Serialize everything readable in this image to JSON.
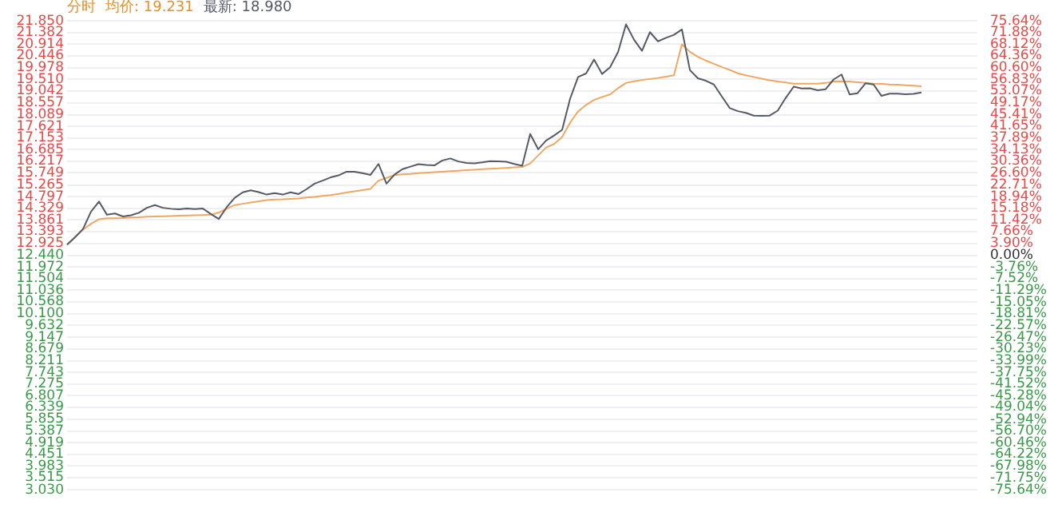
{
  "chart_data": {
    "type": "line",
    "title": "分时",
    "annotations": [
      "均价: 19.231",
      "最新: 18.980"
    ],
    "categories": [
      null,
      null,
      null,
      null,
      null,
      null,
      null,
      null,
      null,
      null,
      null,
      null,
      null,
      null,
      null,
      null,
      null,
      null,
      null,
      null,
      null,
      null,
      null,
      null,
      null,
      null,
      null,
      null,
      null,
      null,
      null,
      null,
      null,
      null,
      null,
      null,
      null,
      null,
      null,
      null,
      null,
      null,
      null,
      null,
      null,
      null,
      null,
      null,
      null,
      null,
      null,
      null,
      null,
      null,
      null,
      null,
      null,
      null,
      null,
      null,
      null,
      null,
      null,
      null,
      null,
      null,
      null,
      null,
      null,
      null,
      null,
      null,
      null,
      null,
      null,
      null,
      null,
      null,
      null,
      null,
      null,
      null,
      null,
      null,
      null,
      null,
      null,
      null,
      null,
      null,
      null,
      null,
      null,
      null,
      null,
      null,
      null,
      null,
      null,
      null,
      null,
      null,
      null,
      null,
      null,
      null,
      null,
      null,
      null,
      null,
      null,
      null,
      null,
      null,
      null
    ],
    "series": [
      {
        "color": "#555a66",
        "values": [
          12.87,
          13.17,
          13.5,
          14.2,
          14.6,
          14.07,
          14.12,
          14.0,
          14.05,
          14.15,
          14.35,
          14.46,
          14.35,
          14.31,
          14.29,
          14.32,
          14.3,
          14.32,
          14.1,
          13.9,
          14.38,
          14.75,
          14.97,
          15.05,
          14.98,
          14.88,
          14.94,
          14.88,
          14.97,
          14.9,
          15.1,
          15.32,
          15.44,
          15.57,
          15.65,
          15.8,
          15.8,
          15.74,
          15.67,
          16.11,
          15.32,
          15.68,
          15.9,
          16.0,
          16.1,
          16.07,
          16.05,
          16.25,
          16.33,
          16.21,
          16.15,
          16.13,
          16.17,
          16.22,
          16.21,
          16.2,
          16.11,
          16.04,
          17.31,
          16.7,
          17.05,
          17.25,
          17.48,
          18.73,
          19.6,
          19.74,
          20.3,
          19.72,
          19.99,
          20.6,
          21.71,
          21.1,
          20.65,
          21.4,
          21.03,
          21.17,
          21.29,
          21.51,
          19.88,
          19.55,
          19.45,
          19.3,
          18.82,
          18.35,
          18.23,
          18.16,
          18.05,
          18.04,
          18.05,
          18.25,
          18.76,
          19.21,
          19.14,
          19.15,
          19.07,
          19.11,
          19.5,
          19.7,
          18.9,
          18.95,
          19.35,
          19.3,
          18.84,
          18.93,
          18.93,
          18.91,
          18.92,
          18.98,
          null,
          null,
          null,
          null,
          null,
          null,
          null
        ]
      },
      {
        "color": "#f0a860",
        "values": [
          12.87,
          13.18,
          13.47,
          13.71,
          13.89,
          13.93,
          13.93,
          13.94,
          13.96,
          13.97,
          13.99,
          14.0,
          14.01,
          14.02,
          14.03,
          14.04,
          14.05,
          14.06,
          14.07,
          14.16,
          14.32,
          14.46,
          14.51,
          14.56,
          14.61,
          14.66,
          14.68,
          14.69,
          14.71,
          14.72,
          14.76,
          14.79,
          14.83,
          14.86,
          14.91,
          14.96,
          15.01,
          15.06,
          15.11,
          15.44,
          15.55,
          15.66,
          15.69,
          15.71,
          15.74,
          15.76,
          15.78,
          15.8,
          15.82,
          15.84,
          15.86,
          15.88,
          15.9,
          15.92,
          15.93,
          15.95,
          15.97,
          15.99,
          16.13,
          16.45,
          16.77,
          16.91,
          17.19,
          17.77,
          18.22,
          18.48,
          18.68,
          18.8,
          18.9,
          19.15,
          19.36,
          19.43,
          19.48,
          19.52,
          19.56,
          19.61,
          19.67,
          20.91,
          20.61,
          20.41,
          20.26,
          20.13,
          20.0,
          19.88,
          19.75,
          19.67,
          19.6,
          19.53,
          19.47,
          19.42,
          19.38,
          19.33,
          19.33,
          19.33,
          19.33,
          19.36,
          19.42,
          19.43,
          19.42,
          19.39,
          19.36,
          19.33,
          19.32,
          19.3,
          19.29,
          19.27,
          19.25,
          19.231,
          null,
          null,
          null,
          null,
          null,
          null,
          null
        ]
      }
    ],
    "ylim": [
      3.03,
      21.85
    ],
    "yticks": [
      {
        "value": 21.85,
        "label": "21.850"
      },
      {
        "value": 21.382,
        "label": "21.382"
      },
      {
        "value": 20.914,
        "label": "20.914"
      },
      {
        "value": 20.446,
        "label": "20.446"
      },
      {
        "value": 19.978,
        "label": "19.978"
      },
      {
        "value": 19.51,
        "label": "19.510"
      },
      {
        "value": 19.042,
        "label": "19.042"
      },
      {
        "value": 18.557,
        "label": "18.557"
      },
      {
        "value": 18.089,
        "label": "18.089"
      },
      {
        "value": 17.621,
        "label": "17.621"
      },
      {
        "value": 17.153,
        "label": "17.153"
      },
      {
        "value": 16.685,
        "label": "16.685"
      },
      {
        "value": 16.217,
        "label": "16.217"
      },
      {
        "value": 15.749,
        "label": "15.749"
      },
      {
        "value": 15.265,
        "label": "15.265"
      },
      {
        "value": 14.797,
        "label": "14.797"
      },
      {
        "value": 14.329,
        "label": "14.329"
      },
      {
        "value": 13.861,
        "label": "13.861"
      },
      {
        "value": 13.393,
        "label": "13.393"
      },
      {
        "value": 12.925,
        "label": "12.925"
      },
      {
        "value": 12.44,
        "label": "12.440"
      },
      {
        "value": 11.972,
        "label": "11.972"
      },
      {
        "value": 11.504,
        "label": "11.504"
      },
      {
        "value": 11.036,
        "label": "11.036"
      },
      {
        "value": 10.568,
        "label": "10.568"
      },
      {
        "value": 10.1,
        "label": "10.100"
      },
      {
        "value": 9.632,
        "label": "9.632"
      },
      {
        "value": 9.147,
        "label": "9.147"
      },
      {
        "value": 8.679,
        "label": "8.679"
      },
      {
        "value": 8.211,
        "label": "8.211"
      },
      {
        "value": 7.743,
        "label": "7.743"
      },
      {
        "value": 7.275,
        "label": "7.275"
      },
      {
        "value": 6.807,
        "label": "6.807"
      },
      {
        "value": 6.339,
        "label": "6.339"
      },
      {
        "value": 5.855,
        "label": "5.855"
      },
      {
        "value": 5.387,
        "label": "5.387"
      },
      {
        "value": 4.919,
        "label": "4.919"
      },
      {
        "value": 4.451,
        "label": "4.451"
      },
      {
        "value": 3.983,
        "label": "3.983"
      },
      {
        "value": 3.515,
        "label": "3.515"
      },
      {
        "value": 3.03,
        "label": "3.030"
      }
    ],
    "y2lim": [
      -75.64,
      75.64
    ],
    "y2ticks": [
      {
        "value": 75.64,
        "label": "75.64%"
      },
      {
        "value": 71.88,
        "label": "71.88%"
      },
      {
        "value": 68.12,
        "label": "68.12%"
      },
      {
        "value": 64.36,
        "label": "64.36%"
      },
      {
        "value": 60.6,
        "label": "60.60%"
      },
      {
        "value": 56.83,
        "label": "56.83%"
      },
      {
        "value": 53.07,
        "label": "53.07%"
      },
      {
        "value": 49.17,
        "label": "49.17%"
      },
      {
        "value": 45.41,
        "label": "45.41%"
      },
      {
        "value": 41.65,
        "label": "41.65%"
      },
      {
        "value": 37.89,
        "label": "37.89%"
      },
      {
        "value": 34.13,
        "label": "34.13%"
      },
      {
        "value": 30.36,
        "label": "30.36%"
      },
      {
        "value": 26.6,
        "label": "26.60%"
      },
      {
        "value": 22.71,
        "label": "22.71%"
      },
      {
        "value": 18.94,
        "label": "18.94%"
      },
      {
        "value": 15.18,
        "label": "15.18%"
      },
      {
        "value": 11.42,
        "label": "11.42%"
      },
      {
        "value": 7.66,
        "label": "7.66%"
      },
      {
        "value": 3.9,
        "label": "3.90%"
      },
      {
        "value": 0,
        "label": "0.00%"
      },
      {
        "value": -3.76,
        "label": "-3.76%"
      },
      {
        "value": -7.52,
        "label": "-7.52%"
      },
      {
        "value": -11.29,
        "label": "-11.29%"
      },
      {
        "value": -15.05,
        "label": "-15.05%"
      },
      {
        "value": -18.81,
        "label": "-18.81%"
      },
      {
        "value": -22.57,
        "label": "-22.57%"
      },
      {
        "value": -26.47,
        "label": "-26.47%"
      },
      {
        "value": -30.23,
        "label": "-30.23%"
      },
      {
        "value": -33.99,
        "label": "-33.99%"
      },
      {
        "value": -37.75,
        "label": "-37.75%"
      },
      {
        "value": -41.52,
        "label": "-41.52%"
      },
      {
        "value": -45.28,
        "label": "-45.28%"
      },
      {
        "value": -49.04,
        "label": "-49.04%"
      },
      {
        "value": -52.94,
        "label": "-52.94%"
      },
      {
        "value": -56.7,
        "label": "-56.70%"
      },
      {
        "value": -60.46,
        "label": "-60.46%"
      },
      {
        "value": -64.22,
        "label": "-64.22%"
      },
      {
        "value": -67.98,
        "label": "-67.98%"
      },
      {
        "value": -71.75,
        "label": "-71.75%"
      },
      {
        "value": -75.64,
        "label": "-75.64%"
      }
    ],
    "grid": "y",
    "marker": "none"
  }
}
